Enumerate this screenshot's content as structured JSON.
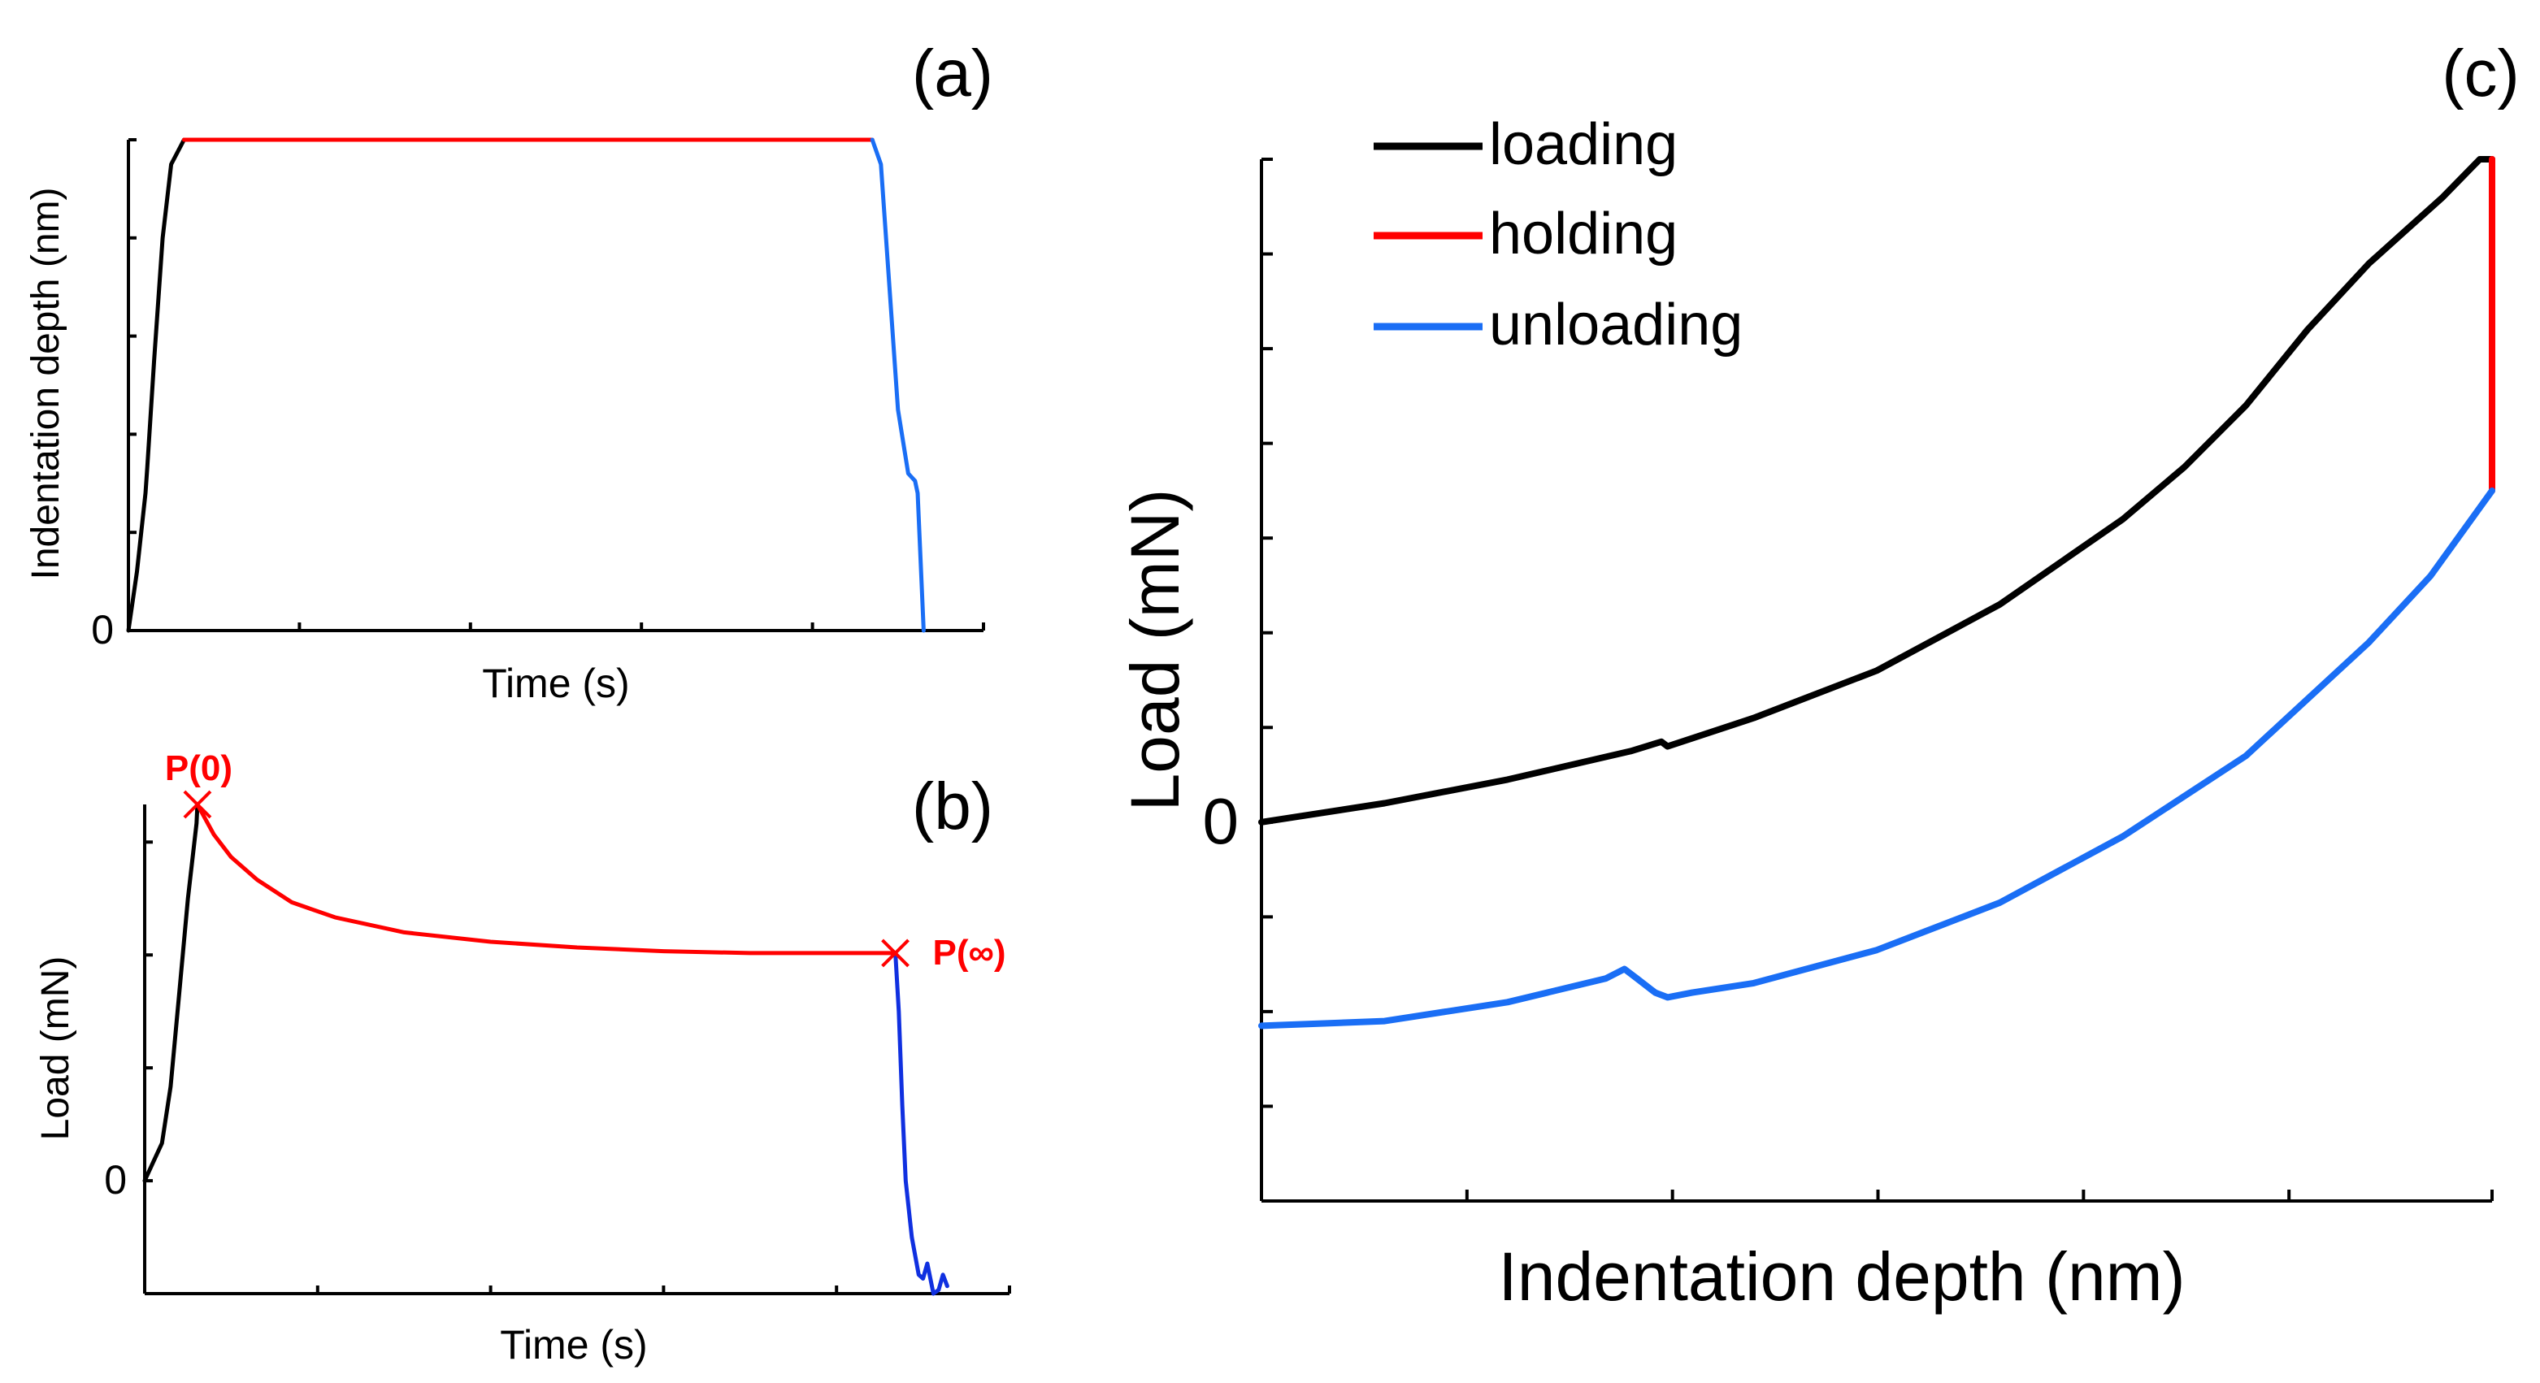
{
  "colors": {
    "loading": "#000000",
    "holding": "#ff0000",
    "unloading": "#1a6ef5",
    "unloading_b": "#1030e0",
    "marker": "#ff0000",
    "axis": "#000000"
  },
  "chart_data": [
    {
      "id": "a",
      "panel_label": "(a)",
      "type": "line",
      "xlabel": "Time (s)",
      "ylabel": "Indentation depth (nm)",
      "xlim": [
        0,
        100
      ],
      "ylim": [
        0,
        100
      ],
      "ytick_labels": [
        {
          "value": 0,
          "label": "0"
        }
      ],
      "xticks": [
        0,
        20,
        40,
        60,
        80,
        100
      ],
      "yticks": [
        0,
        20,
        40,
        60,
        80,
        100
      ],
      "series": [
        {
          "name": "loading",
          "color_key": "loading",
          "points": [
            [
              0,
              0
            ],
            [
              1,
              12
            ],
            [
              2,
              28
            ],
            [
              2.2,
              33
            ],
            [
              3,
              55
            ],
            [
              4,
              80
            ],
            [
              5,
              95
            ],
            [
              6.5,
              100
            ]
          ]
        },
        {
          "name": "holding",
          "color_key": "holding",
          "points": [
            [
              6.5,
              100
            ],
            [
              30,
              100
            ],
            [
              60,
              100
            ],
            [
              87,
              100
            ]
          ]
        },
        {
          "name": "unloading",
          "color_key": "unloading",
          "points": [
            [
              87,
              100
            ],
            [
              88,
              95
            ],
            [
              89,
              70
            ],
            [
              90,
              45
            ],
            [
              91.2,
              32
            ],
            [
              92,
              30.5
            ],
            [
              92.3,
              28
            ],
            [
              93,
              0
            ]
          ]
        }
      ]
    },
    {
      "id": "b",
      "panel_label": "(b)",
      "type": "line",
      "xlabel": "Time (s)",
      "ylabel": "Load (mN)",
      "xlim": [
        0,
        100
      ],
      "ylim": [
        -30,
        100
      ],
      "ytick_labels": [
        {
          "value": 0,
          "label": "0"
        }
      ],
      "xticks": [
        0,
        20,
        40,
        60,
        80,
        100
      ],
      "yticks": [
        -30,
        0,
        30,
        60,
        90
      ],
      "series": [
        {
          "name": "loading",
          "color_key": "loading",
          "points": [
            [
              0,
              0
            ],
            [
              1,
              5
            ],
            [
              2,
              10
            ],
            [
              3,
              25
            ],
            [
              4,
              50
            ],
            [
              5,
              75
            ],
            [
              6,
              95
            ],
            [
              6.1,
              100
            ]
          ]
        },
        {
          "name": "holding",
          "color_key": "holding",
          "points": [
            [
              6.1,
              100
            ],
            [
              8,
              92
            ],
            [
              10,
              86
            ],
            [
              13,
              80
            ],
            [
              17,
              74
            ],
            [
              22,
              70
            ],
            [
              30,
              66
            ],
            [
              40,
              63.5
            ],
            [
              50,
              62
            ],
            [
              60,
              61
            ],
            [
              70,
              60.5
            ],
            [
              80,
              60.5
            ],
            [
              85,
              60.5
            ],
            [
              86.8,
              60.5
            ]
          ]
        },
        {
          "name": "unloading",
          "color_key": "unloading_b",
          "points": [
            [
              86.8,
              60.5
            ],
            [
              87.2,
              45
            ],
            [
              87.6,
              20
            ],
            [
              88,
              0
            ],
            [
              88.7,
              -15
            ],
            [
              89.5,
              -25
            ],
            [
              90,
              -26
            ],
            [
              90.5,
              -22
            ],
            [
              91.2,
              -30
            ],
            [
              91.8,
              -29
            ],
            [
              92.3,
              -25
            ],
            [
              92.8,
              -28
            ]
          ]
        }
      ],
      "annotations": [
        {
          "label": "P(0)",
          "x": 6.1,
          "y": 100,
          "marker": "x"
        },
        {
          "label": "P(∞)",
          "x": 86.8,
          "y": 60.5,
          "marker": "x"
        }
      ]
    },
    {
      "id": "c",
      "panel_label": "(c)",
      "type": "line",
      "xlabel": "Indentation depth (nm)",
      "ylabel": "Load (mN)",
      "xlim": [
        0,
        100
      ],
      "ylim": [
        -40,
        70
      ],
      "ytick_labels": [
        {
          "value": 0,
          "label": "0"
        }
      ],
      "xticks": [
        0,
        16.7,
        33.4,
        50.1,
        66.8,
        83.5,
        100
      ],
      "yticks": [
        -30,
        -20,
        -10,
        0,
        10,
        20,
        30,
        40,
        50,
        60,
        70
      ],
      "legend": {
        "position": "top-left",
        "entries": [
          "loading",
          "holding",
          "unloading"
        ]
      },
      "series": [
        {
          "name": "loading",
          "color_key": "loading",
          "points": [
            [
              0,
              0
            ],
            [
              10,
              2
            ],
            [
              20,
              4.5
            ],
            [
              30,
              7.5
            ],
            [
              32.5,
              8.5
            ],
            [
              33,
              8
            ],
            [
              40,
              11
            ],
            [
              50,
              16
            ],
            [
              60,
              23
            ],
            [
              70,
              32
            ],
            [
              75,
              37.5
            ],
            [
              80,
              44
            ],
            [
              85,
              52
            ],
            [
              90,
              59
            ],
            [
              93,
              62.5
            ],
            [
              96,
              66
            ],
            [
              99,
              70
            ],
            [
              100,
              70
            ]
          ]
        },
        {
          "name": "holding",
          "color_key": "holding",
          "points": [
            [
              100,
              70
            ],
            [
              100,
              35
            ]
          ]
        },
        {
          "name": "unloading",
          "color_key": "unloading",
          "points": [
            [
              0,
              -21.5
            ],
            [
              10,
              -21
            ],
            [
              20,
              -19
            ],
            [
              28,
              -16.5
            ],
            [
              29.5,
              -15.5
            ],
            [
              30.5,
              -16.5
            ],
            [
              32,
              -18
            ],
            [
              33,
              -18.5
            ],
            [
              35,
              -18
            ],
            [
              40,
              -17
            ],
            [
              50,
              -13.5
            ],
            [
              60,
              -8.5
            ],
            [
              70,
              -1.5
            ],
            [
              80,
              7
            ],
            [
              90,
              19
            ],
            [
              95,
              26
            ],
            [
              100,
              35
            ]
          ]
        }
      ]
    }
  ]
}
